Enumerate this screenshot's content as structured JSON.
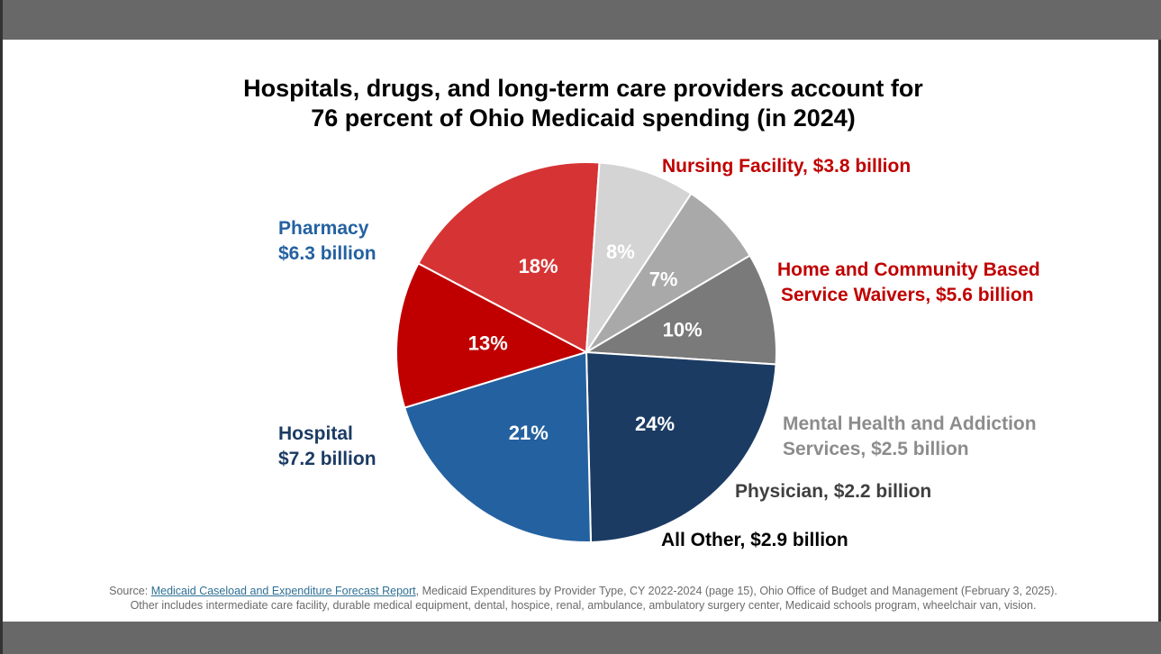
{
  "title": {
    "line1": "Hospitals, drugs, and long-term care providers account for",
    "line2": "76 percent of Ohio Medicaid spending (in 2024)"
  },
  "chart_data": {
    "type": "pie",
    "title": "Hospitals, drugs, and long-term care providers account for 76 percent of Ohio Medicaid spending (in 2024)",
    "slices": [
      {
        "category": "Nursing Facility",
        "amount": "$3.8 billion",
        "value_billion": 3.8,
        "percent": 13,
        "percent_label": "13%",
        "color": "#c00000"
      },
      {
        "category": "Home and Community Based Service Waivers",
        "amount": "$5.6 billion",
        "value_billion": 5.6,
        "percent": 18,
        "percent_label": "18%",
        "color": "#d63434"
      },
      {
        "category": "Mental Health and Addiction Services",
        "amount": "$2.5 billion",
        "value_billion": 2.5,
        "percent": 8,
        "percent_label": "8%",
        "color": "#d4d4d4"
      },
      {
        "category": "Physician",
        "amount": "$2.2 billion",
        "value_billion": 2.2,
        "percent": 7,
        "percent_label": "7%",
        "color": "#a9a9a9"
      },
      {
        "category": "All Other",
        "amount": "$2.9 billion",
        "value_billion": 2.9,
        "percent": 10,
        "percent_label": "10%",
        "color": "#7a7a7a"
      },
      {
        "category": "Hospital",
        "amount": "$7.2 billion",
        "value_billion": 7.2,
        "percent": 24,
        "percent_label": "24%",
        "color": "#1b3b63"
      },
      {
        "category": "Pharmacy",
        "amount": "$6.3 billion",
        "value_billion": 6.3,
        "percent": 21,
        "percent_label": "21%",
        "color": "#2461a0"
      }
    ]
  },
  "labels": {
    "nursing": "Nursing Facility, $3.8 billion",
    "hcbs_line1": "Home and Community Based",
    "hcbs_line2": "Service Waivers, $5.6 billion",
    "mental_line1": "Mental Health and Addiction",
    "mental_line2": "Services, $2.5 billion",
    "physician": "Physician, $2.2 billion",
    "other": "All Other, $2.9 billion",
    "hospital_line1": "Hospital",
    "hospital_line2": "$7.2 billion",
    "pharmacy_line1": "Pharmacy",
    "pharmacy_line2": "$6.3 billion"
  },
  "label_colors": {
    "nursing": "#c00000",
    "hcbs": "#c00000",
    "mental": "#8c8c8c",
    "physician": "#404040",
    "other": "#000000",
    "hospital": "#1b3b63",
    "pharmacy": "#2461a0"
  },
  "source": {
    "prefix": "Source: ",
    "link_text": "Medicaid Caseload and Expenditure Forecast Report",
    "rest": ", Medicaid Expenditures by Provider Type, CY 2022-2024 (page 15), Ohio Office of Budget and Management (February 3, 2025).",
    "line2": "Other includes intermediate care facility, durable medical equipment, dental, hospice, renal, ambulance, ambulatory surgery center, Medicaid schools program, wheelchair van, vision."
  }
}
